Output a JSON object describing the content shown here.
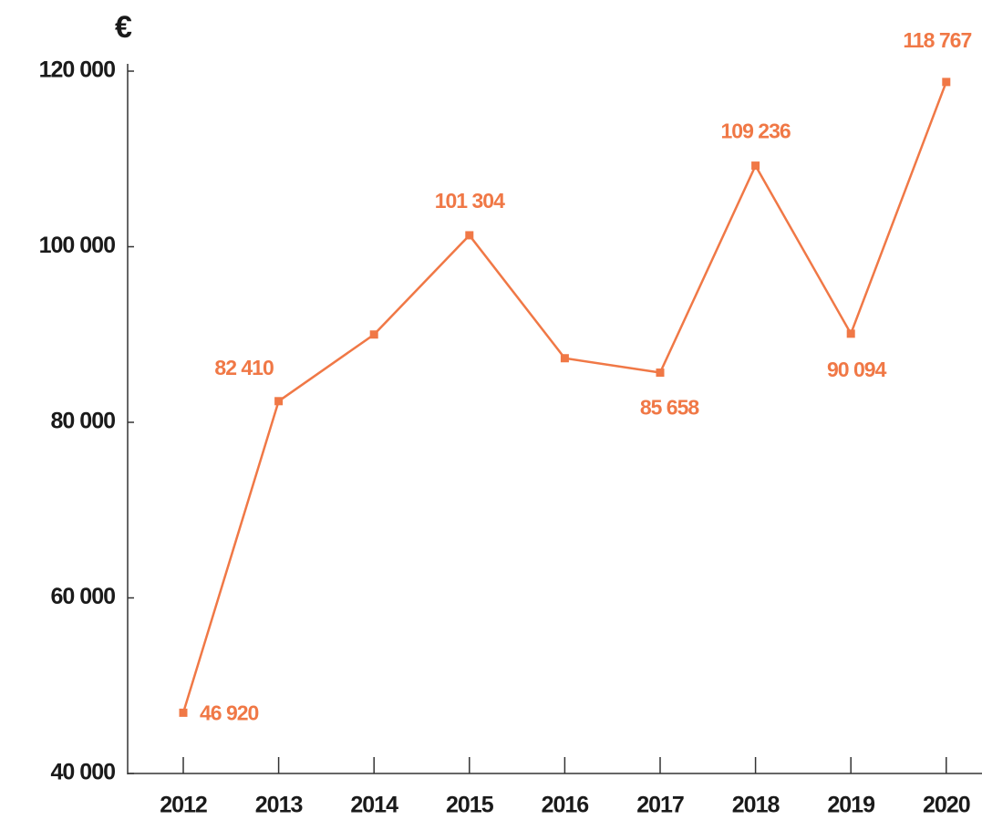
{
  "chart_data": {
    "type": "line",
    "ylabel": "€",
    "categories": [
      "2012",
      "2013",
      "2014",
      "2015",
      "2016",
      "2017",
      "2018",
      "2019",
      "2020"
    ],
    "series": [
      {
        "color": "#f07846",
        "values": [
          46920,
          82410,
          90000,
          101304,
          87300,
          85658,
          109236,
          90094,
          118767
        ],
        "value_labels": [
          "46 920",
          "82 410",
          null,
          "101 304",
          null,
          "85 658",
          "109 236",
          "90 094",
          "118 767"
        ]
      }
    ],
    "ylim": [
      40000,
      120000
    ],
    "yticks": [
      {
        "value": 40000,
        "label": "40 000"
      },
      {
        "value": 60000,
        "label": "60 000"
      },
      {
        "value": 80000,
        "label": "80 000"
      },
      {
        "value": 100000,
        "label": "100 000"
      },
      {
        "value": 120000,
        "label": "120 000"
      }
    ]
  }
}
